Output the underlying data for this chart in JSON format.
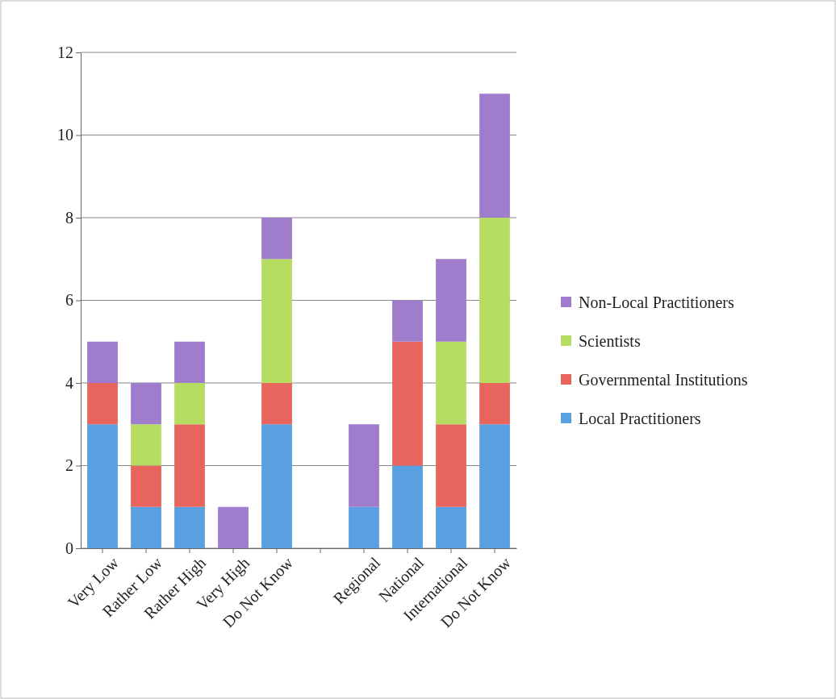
{
  "chart_data": {
    "type": "bar",
    "stacked": true,
    "categories": [
      "Very Low",
      "Rather Low",
      "Rather High",
      "Very High",
      "Do Not Know",
      null,
      "Regional",
      "National",
      "International",
      "Do Not Know"
    ],
    "series": [
      {
        "name": "Local Practitioners",
        "color": "#5a9fe0",
        "values": [
          3,
          1,
          1,
          0,
          3,
          null,
          1,
          2,
          1,
          3
        ]
      },
      {
        "name": "Governmental Institutions",
        "color": "#e8655e",
        "values": [
          1,
          1,
          2,
          0,
          1,
          null,
          0,
          3,
          2,
          1
        ]
      },
      {
        "name": "Scientists",
        "color": "#b6dc62",
        "values": [
          0,
          1,
          1,
          0,
          3,
          null,
          0,
          0,
          2,
          4
        ]
      },
      {
        "name": "Non-Local Practitioners",
        "color": "#a07dcc",
        "values": [
          1,
          1,
          1,
          1,
          1,
          null,
          2,
          1,
          2,
          3
        ]
      }
    ],
    "ylim": [
      0,
      12
    ],
    "yticks": [
      0,
      2,
      4,
      6,
      8,
      10,
      12
    ],
    "grid": "y",
    "legend": "right"
  }
}
